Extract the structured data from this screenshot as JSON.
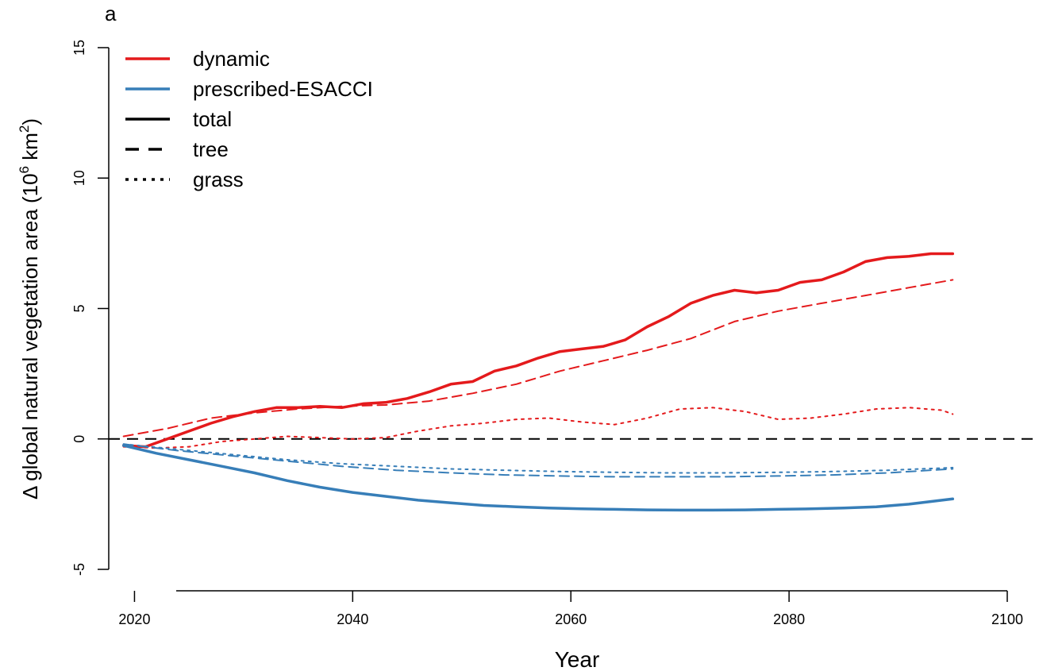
{
  "panel_label": "a",
  "chart_data": {
    "type": "line",
    "xlabel": "Year",
    "ylabel_main": "Δ global natural vegetation area (10",
    "ylabel_sup": "6",
    "ylabel_unit": " km",
    "ylabel_sup2": "2",
    "ylabel_close": ")",
    "xlim": [
      2010,
      2100
    ],
    "ylim": [
      -5,
      15
    ],
    "x_ticks": [
      2020,
      2040,
      2060,
      2080,
      2100
    ],
    "y_ticks": [
      -5,
      0,
      5,
      10,
      15
    ],
    "x_tick_labels": [
      "2020",
      "2040",
      "2060",
      "2080",
      "2100"
    ],
    "y_tick_labels": [
      "-5",
      "0",
      "5",
      "10",
      "15"
    ],
    "grid": false,
    "legend_position": "top-left",
    "reference_line": {
      "y": 0,
      "style": "dashed",
      "color": "#000000"
    },
    "legend": [
      {
        "label": "dynamic",
        "color": "#e41a1c",
        "style": "solid"
      },
      {
        "label": "prescribed-ESACCI",
        "color": "#377eb8",
        "style": "solid"
      },
      {
        "label": "total",
        "color": "#000000",
        "style": "solid"
      },
      {
        "label": "tree",
        "color": "#000000",
        "style": "dashed"
      },
      {
        "label": "grass",
        "color": "#000000",
        "style": "dotted"
      }
    ],
    "series": [
      {
        "model": "dynamic",
        "component": "total",
        "color": "#e41a1c",
        "style": "solid",
        "x": [
          2019,
          2021,
          2023,
          2025,
          2027,
          2029,
          2031,
          2033,
          2035,
          2037,
          2039,
          2041,
          2043,
          2045,
          2047,
          2049,
          2051,
          2053,
          2055,
          2057,
          2059,
          2061,
          2063,
          2065,
          2067,
          2069,
          2071,
          2073,
          2075,
          2077,
          2079,
          2081,
          2083,
          2085,
          2087,
          2089,
          2091,
          2093,
          2095
        ],
        "y": [
          -0.25,
          -0.3,
          0.0,
          0.3,
          0.6,
          0.85,
          1.05,
          1.2,
          1.2,
          1.25,
          1.2,
          1.35,
          1.4,
          1.55,
          1.8,
          2.1,
          2.2,
          2.6,
          2.8,
          3.1,
          3.35,
          3.45,
          3.55,
          3.8,
          4.3,
          4.7,
          5.2,
          5.5,
          5.7,
          5.6,
          5.7,
          6.0,
          6.1,
          6.4,
          6.8,
          6.95,
          7.0,
          7.1,
          7.1
        ]
      },
      {
        "model": "dynamic",
        "component": "tree",
        "color": "#e41a1c",
        "style": "dashed",
        "x": [
          2019,
          2023,
          2027,
          2031,
          2035,
          2039,
          2043,
          2047,
          2051,
          2055,
          2059,
          2063,
          2067,
          2071,
          2075,
          2079,
          2083,
          2087,
          2091,
          2095
        ],
        "y": [
          0.1,
          0.4,
          0.8,
          1.0,
          1.15,
          1.25,
          1.3,
          1.45,
          1.75,
          2.1,
          2.6,
          3.0,
          3.4,
          3.85,
          4.5,
          4.9,
          5.2,
          5.5,
          5.8,
          6.1
        ]
      },
      {
        "model": "dynamic",
        "component": "grass",
        "color": "#e41a1c",
        "style": "dotted",
        "x": [
          2019,
          2022,
          2025,
          2028,
          2031,
          2034,
          2037,
          2040,
          2043,
          2046,
          2049,
          2052,
          2055,
          2058,
          2061,
          2064,
          2067,
          2070,
          2073,
          2076,
          2079,
          2082,
          2085,
          2088,
          2091,
          2094,
          2095
        ],
        "y": [
          -0.3,
          -0.35,
          -0.3,
          -0.1,
          0.0,
          0.1,
          0.05,
          0.0,
          0.05,
          0.3,
          0.5,
          0.6,
          0.75,
          0.8,
          0.65,
          0.55,
          0.8,
          1.15,
          1.2,
          1.05,
          0.75,
          0.8,
          0.95,
          1.15,
          1.2,
          1.1,
          0.95
        ]
      },
      {
        "model": "prescribed-ESACCI",
        "component": "total",
        "color": "#377eb8",
        "style": "solid",
        "x": [
          2019,
          2022,
          2025,
          2028,
          2031,
          2034,
          2037,
          2040,
          2043,
          2046,
          2049,
          2052,
          2055,
          2058,
          2061,
          2064,
          2067,
          2070,
          2073,
          2076,
          2079,
          2082,
          2085,
          2088,
          2091,
          2095
        ],
        "y": [
          -0.25,
          -0.55,
          -0.8,
          -1.05,
          -1.3,
          -1.6,
          -1.85,
          -2.05,
          -2.2,
          -2.35,
          -2.45,
          -2.55,
          -2.6,
          -2.65,
          -2.68,
          -2.7,
          -2.72,
          -2.73,
          -2.73,
          -2.72,
          -2.7,
          -2.68,
          -2.65,
          -2.6,
          -2.5,
          -2.3
        ]
      },
      {
        "model": "prescribed-ESACCI",
        "component": "tree",
        "color": "#377eb8",
        "style": "dashed",
        "x": [
          2019,
          2024,
          2029,
          2034,
          2039,
          2044,
          2049,
          2054,
          2059,
          2064,
          2069,
          2074,
          2079,
          2084,
          2089,
          2095
        ],
        "y": [
          -0.2,
          -0.45,
          -0.65,
          -0.85,
          -1.05,
          -1.2,
          -1.3,
          -1.38,
          -1.42,
          -1.45,
          -1.45,
          -1.45,
          -1.42,
          -1.38,
          -1.3,
          -1.15
        ]
      },
      {
        "model": "prescribed-ESACCI",
        "component": "grass",
        "color": "#377eb8",
        "style": "dotted",
        "x": [
          2019,
          2024,
          2029,
          2034,
          2039,
          2044,
          2049,
          2054,
          2059,
          2064,
          2069,
          2074,
          2079,
          2084,
          2089,
          2095
        ],
        "y": [
          -0.2,
          -0.4,
          -0.6,
          -0.8,
          -0.95,
          -1.05,
          -1.15,
          -1.2,
          -1.25,
          -1.28,
          -1.3,
          -1.3,
          -1.28,
          -1.25,
          -1.2,
          -1.1
        ]
      }
    ]
  }
}
